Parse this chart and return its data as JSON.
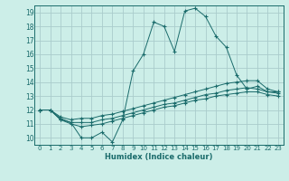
{
  "bg_color": "#cceee8",
  "grid_color": "#aacccc",
  "line_color": "#1a6b6b",
  "xlabel": "Humidex (Indice chaleur)",
  "xlim": [
    -0.5,
    23.5
  ],
  "ylim": [
    9.5,
    19.5
  ],
  "yticks": [
    10,
    11,
    12,
    13,
    14,
    15,
    16,
    17,
    18,
    19
  ],
  "xticks": [
    0,
    1,
    2,
    3,
    4,
    5,
    6,
    7,
    8,
    9,
    10,
    11,
    12,
    13,
    14,
    15,
    16,
    17,
    18,
    19,
    20,
    21,
    22,
    23
  ],
  "line1_x": [
    0,
    1,
    2,
    3,
    4,
    5,
    6,
    7,
    8,
    9,
    10,
    11,
    12,
    13,
    14,
    15,
    16,
    17,
    18,
    19,
    20,
    21,
    22,
    23
  ],
  "line1_y": [
    12.0,
    12.0,
    11.3,
    11.1,
    10.0,
    10.0,
    10.4,
    9.7,
    11.3,
    14.8,
    16.0,
    18.3,
    18.0,
    16.2,
    19.1,
    19.3,
    18.7,
    17.3,
    16.5,
    14.5,
    13.5,
    13.7,
    13.3,
    13.3
  ],
  "line2_x": [
    0,
    1,
    2,
    3,
    4,
    5,
    6,
    7,
    8,
    9,
    10,
    11,
    12,
    13,
    14,
    15,
    16,
    17,
    18,
    19,
    20,
    21,
    22,
    23
  ],
  "line2_y": [
    12.0,
    12.0,
    11.5,
    11.3,
    11.4,
    11.4,
    11.6,
    11.7,
    11.9,
    12.1,
    12.3,
    12.5,
    12.7,
    12.9,
    13.1,
    13.3,
    13.5,
    13.7,
    13.9,
    14.0,
    14.1,
    14.1,
    13.5,
    13.3
  ],
  "line3_x": [
    0,
    1,
    2,
    3,
    4,
    5,
    6,
    7,
    8,
    9,
    10,
    11,
    12,
    13,
    14,
    15,
    16,
    17,
    18,
    19,
    20,
    21,
    22,
    23
  ],
  "line3_y": [
    12.0,
    12.0,
    11.4,
    11.1,
    11.1,
    11.1,
    11.3,
    11.4,
    11.6,
    11.8,
    12.0,
    12.2,
    12.4,
    12.5,
    12.7,
    12.9,
    13.1,
    13.2,
    13.4,
    13.5,
    13.6,
    13.5,
    13.3,
    13.2
  ],
  "line4_x": [
    0,
    1,
    2,
    3,
    4,
    5,
    6,
    7,
    8,
    9,
    10,
    11,
    12,
    13,
    14,
    15,
    16,
    17,
    18,
    19,
    20,
    21,
    22,
    23
  ],
  "line4_y": [
    12.0,
    12.0,
    11.3,
    11.0,
    10.8,
    10.9,
    11.0,
    11.2,
    11.4,
    11.6,
    11.8,
    12.0,
    12.2,
    12.3,
    12.5,
    12.7,
    12.8,
    13.0,
    13.1,
    13.2,
    13.3,
    13.3,
    13.1,
    13.0
  ]
}
